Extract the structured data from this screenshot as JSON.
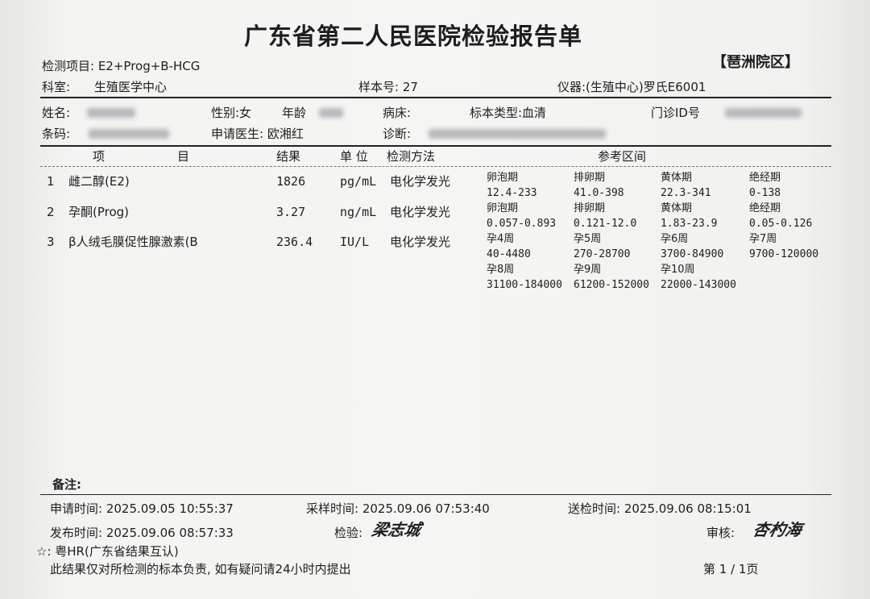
{
  "title": "广东省第二人民医院检验报告单",
  "campus": "【琶洲院区】",
  "header": {
    "test_items": "检测项目: E2+Prog+B-HCG",
    "dept_label": "科室:",
    "dept": "生殖医学中心",
    "sample_no": "样本号: 27",
    "instrument": "仪器:(生殖中心)罗氏E6001"
  },
  "patient": {
    "name_label": "姓名:",
    "sex": "性别:女",
    "age_label": "年龄",
    "bed_label": "病床:",
    "specimen": "标本类型:血清",
    "clinic_id_label": "门诊ID号",
    "barcode_label": "条码:",
    "doctor": "申请医生: 欧湘红",
    "diagnosis_label": "诊断:"
  },
  "columns": {
    "item1": "项",
    "item2": "目",
    "result": "结果",
    "unit": "单 位",
    "method": "检测方法",
    "reference": "参考区间"
  },
  "rows": [
    {
      "no": "1",
      "name": "雌二醇(E2)",
      "result": "1826",
      "unit": "pg/mL",
      "method": "电化学发光"
    },
    {
      "no": "2",
      "name": "孕酮(Prog)",
      "result": "3.27",
      "unit": "ng/mL",
      "method": "电化学发光"
    },
    {
      "no": "3",
      "name": "β人绒毛膜促性腺激素(B",
      "result": "236.4",
      "unit": "IU/L",
      "method": "电化学发光"
    }
  ],
  "reference": [
    [
      "卵泡期",
      "排卵期",
      "黄体期",
      "绝经期"
    ],
    [
      "12.4-233",
      "41.0-398",
      "22.3-341",
      "0-138"
    ],
    [
      "卵泡期",
      "排卵期",
      "黄体期",
      "绝经期"
    ],
    [
      "0.057-0.893",
      "0.121-12.0",
      "1.83-23.9",
      "0.05-0.126"
    ],
    [
      "孕4周",
      "孕5周",
      "孕6周",
      "孕7周"
    ],
    [
      "40-4480",
      "270-28700",
      "3700-84900",
      "9700-120000"
    ],
    [
      "孕8周",
      "孕9周",
      "孕10周",
      ""
    ],
    [
      "31100-184000",
      "61200-152000",
      "22000-143000",
      ""
    ]
  ],
  "footer": {
    "remarks": "备注:",
    "request_time": "申请时间: 2025.09.05 10:55:37",
    "sample_time": "采样时间: 2025.09.06 07:53:40",
    "send_time": "送检时间: 2025.09.06 08:15:01",
    "publish_time": "发布时间: 2025.09.06 08:57:33",
    "tester_label": "检验:",
    "tester_signature": "梁志城",
    "reviewer_label": "审核:",
    "reviewer_signature": "杏杓海",
    "mutual_recognition": "☆: 粤HR(广东省结果互认)",
    "disclaimer": "此结果仅对所检测的标本负责, 如有疑问请24小时内提出",
    "page": "第 1 / 1页"
  }
}
